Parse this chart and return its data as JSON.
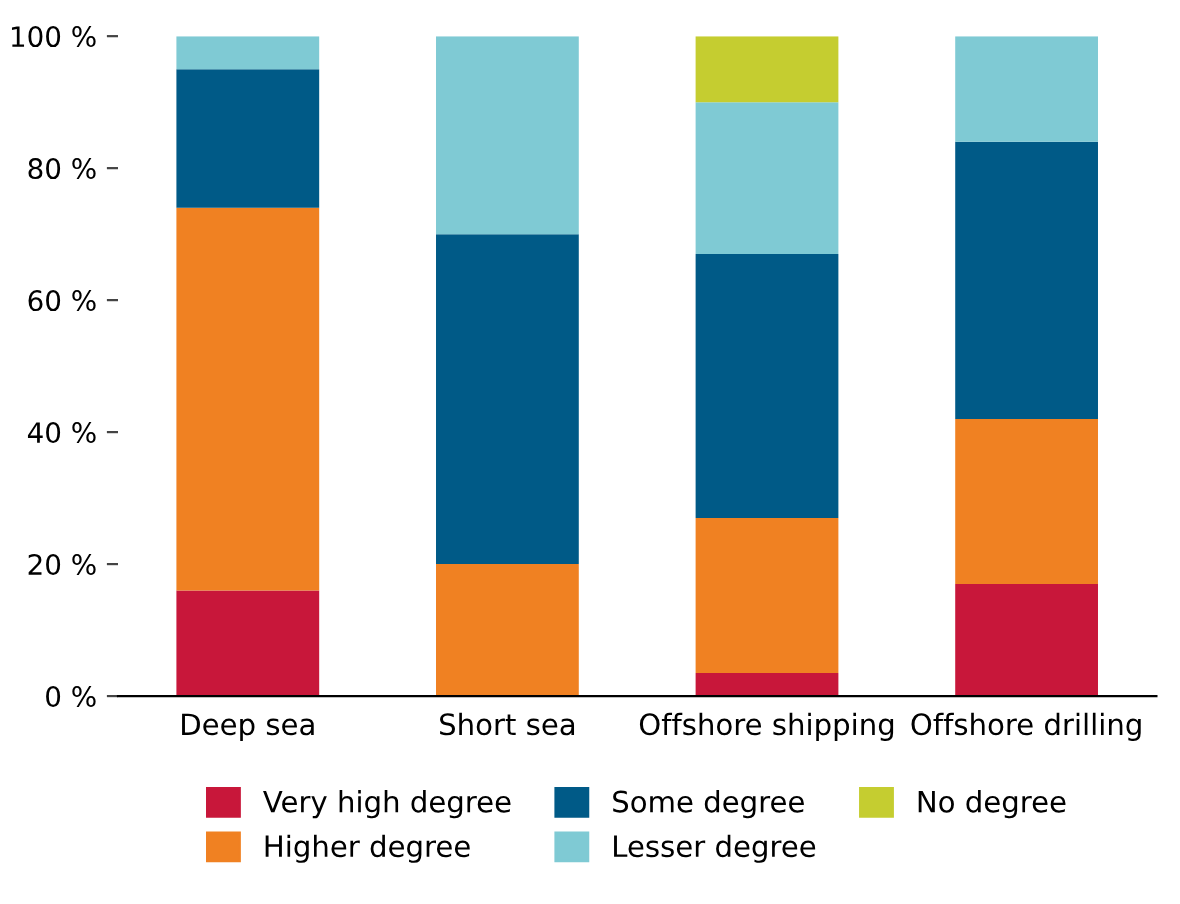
{
  "chart_data": {
    "type": "bar",
    "stacked": true,
    "categories": [
      "Deep sea",
      "Short sea",
      "Offshore shipping",
      "Offshore drilling"
    ],
    "series": [
      {
        "name": "Very high degree",
        "color": "#c8173a",
        "values": [
          16,
          0,
          3.5,
          17
        ]
      },
      {
        "name": "Higher degree",
        "color": "#f08122",
        "values": [
          58,
          20,
          23.5,
          25
        ]
      },
      {
        "name": "Some degree",
        "color": "#005a87",
        "values": [
          21,
          50,
          40,
          42
        ]
      },
      {
        "name": "Lesser degree",
        "color": "#7fcad4",
        "values": [
          5,
          30,
          23,
          16
        ]
      },
      {
        "name": "No degree",
        "color": "#c5cd30",
        "values": [
          0,
          0,
          10,
          0
        ]
      }
    ],
    "ylim": [
      0,
      100
    ],
    "yticks": [
      {
        "value": 0,
        "label": "0 %"
      },
      {
        "value": 20,
        "label": "20 %"
      },
      {
        "value": 40,
        "label": "40 %"
      },
      {
        "value": 60,
        "label": "60 %"
      },
      {
        "value": 80,
        "label": "80 %"
      },
      {
        "value": 100,
        "label": "100 %"
      }
    ],
    "grid": false,
    "legend": "bottom"
  }
}
